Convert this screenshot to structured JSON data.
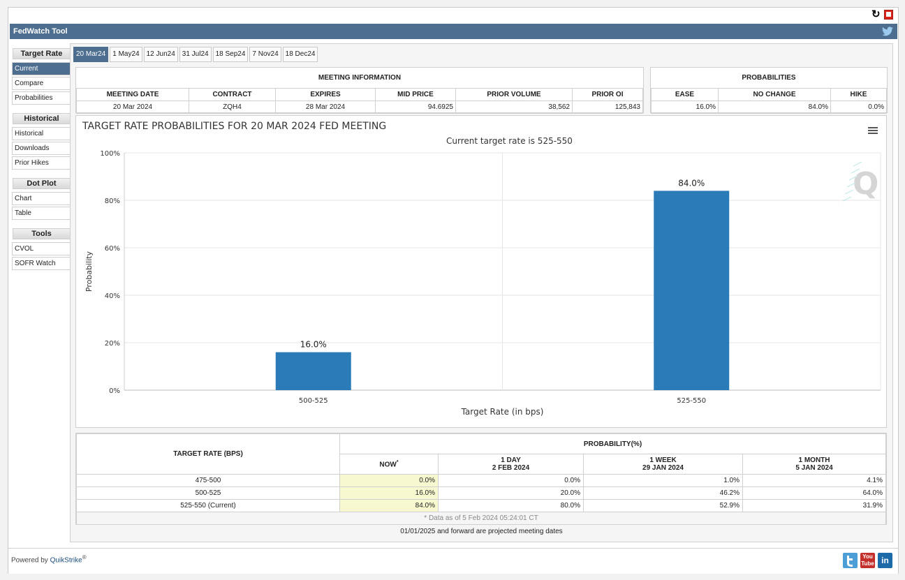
{
  "app": {
    "title": "FedWatch Tool"
  },
  "sidebar": {
    "groups": [
      {
        "heading": "Target Rate",
        "items": [
          "Current",
          "Compare",
          "Probabilities"
        ]
      },
      {
        "heading": "Historical",
        "items": [
          "Historical",
          "Downloads",
          "Prior Hikes"
        ]
      },
      {
        "heading": "Dot Plot",
        "items": [
          "Chart",
          "Table"
        ]
      },
      {
        "heading": "Tools",
        "items": [
          "CVOL",
          "SOFR Watch"
        ]
      }
    ],
    "active_item": "Current"
  },
  "tabs": [
    "20 Mar24",
    "1 May24",
    "12 Jun24",
    "31 Jul24",
    "18 Sep24",
    "7 Nov24",
    "18 Dec24"
  ],
  "active_tab": "20 Mar24",
  "meeting_info": {
    "heading": "MEETING INFORMATION",
    "columns": [
      "MEETING DATE",
      "CONTRACT",
      "EXPIRES",
      "MID PRICE",
      "PRIOR VOLUME",
      "PRIOR OI"
    ],
    "row": [
      "20 Mar 2024",
      "ZQH4",
      "28 Mar 2024",
      "94.6925",
      "38,562",
      "125,843"
    ]
  },
  "probabilities": {
    "heading": "PROBABILITIES",
    "columns": [
      "EASE",
      "NO CHANGE",
      "HIKE"
    ],
    "row": [
      "16.0%",
      "84.0%",
      "0.0%"
    ]
  },
  "chart_data": {
    "type": "bar",
    "title": "TARGET RATE PROBABILITIES FOR 20 MAR 2024 FED MEETING",
    "subtitle": "Current target rate is 525-550",
    "xlabel": "Target Rate (in bps)",
    "ylabel": "Probability",
    "categories": [
      "500-525",
      "525-550"
    ],
    "values": [
      16.0,
      84.0
    ],
    "data_labels": [
      "16.0%",
      "84.0%"
    ],
    "ylim": [
      0,
      100
    ],
    "yticks": [
      "0%",
      "20%",
      "40%",
      "60%",
      "80%",
      "100%"
    ],
    "bar_color": "#2b7bb9",
    "grid": true,
    "legend": "none"
  },
  "prob_table": {
    "rate_header": "TARGET RATE (BPS)",
    "group_header": "PROBABILITY(%)",
    "col_now": "NOW",
    "col_now_mark": "*",
    "col_day": [
      "1 DAY",
      "2 FEB 2024"
    ],
    "col_week": [
      "1 WEEK",
      "29 JAN 2024"
    ],
    "col_month": [
      "1 MONTH",
      "5 JAN 2024"
    ],
    "rows": [
      {
        "rate": "475-500",
        "now": "0.0%",
        "day": "0.0%",
        "week": "1.0%",
        "month": "4.1%"
      },
      {
        "rate": "500-525",
        "now": "16.0%",
        "day": "20.0%",
        "week": "46.2%",
        "month": "64.0%"
      },
      {
        "rate": "525-550 (Current)",
        "now": "84.0%",
        "day": "80.0%",
        "week": "52.9%",
        "month": "31.9%"
      }
    ],
    "footnote": "* Data as of 5 Feb 2024 05:24:01 CT"
  },
  "projected_note": "01/01/2025 and forward are projected meeting dates",
  "footer": {
    "powered_prefix": "Powered by ",
    "powered_brand": "QuikStrike",
    "powered_mark": "®",
    "linkedin_text": "in",
    "youtube_text": [
      "You",
      "Tube"
    ]
  },
  "icons": [
    "refresh-icon",
    "pdf-icon",
    "twitter-bird-icon",
    "chart-menu-icon",
    "quikstrike-q-logo",
    "twitter-icon",
    "youtube-icon",
    "linkedin-icon"
  ],
  "colors": {
    "header_bar": "#4d6e8f",
    "bar": "#2b7bb9",
    "now_highlight": "#f8f8d0"
  }
}
